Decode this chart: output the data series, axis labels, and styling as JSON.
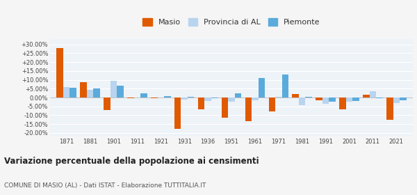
{
  "years": [
    1871,
    1881,
    1901,
    1911,
    1921,
    1931,
    1936,
    1951,
    1961,
    1971,
    1981,
    1991,
    2001,
    2011,
    2021
  ],
  "masio": [
    28.0,
    8.5,
    -7.0,
    -0.5,
    -0.5,
    -17.5,
    -6.5,
    -11.5,
    -13.5,
    -8.0,
    2.0,
    -1.5,
    -6.5,
    1.5,
    -12.5
  ],
  "provincia": [
    6.0,
    4.5,
    9.5,
    0.0,
    0.0,
    -1.0,
    -2.0,
    -2.5,
    -1.5,
    0.5,
    -4.5,
    -3.5,
    -2.5,
    3.5,
    -3.0
  ],
  "piemonte": [
    5.5,
    5.0,
    6.5,
    2.5,
    0.8,
    0.5,
    -0.5,
    2.5,
    11.0,
    13.0,
    0.5,
    -2.5,
    -2.0,
    -0.5,
    -1.5
  ],
  "masio_color": "#e05a00",
  "provincia_color": "#b8d4ee",
  "piemonte_color": "#5aabdb",
  "bg_color": "#eef3f8",
  "grid_color": "#ffffff",
  "title": "Variazione percentuale della popolazione ai censimenti",
  "subtitle": "COMUNE DI MASIO (AL) - Dati ISTAT - Elaborazione TUTTITALIA.IT",
  "ylim": [
    -22,
    33
  ],
  "yticks": [
    -20,
    -15,
    -10,
    -5,
    0,
    5,
    10,
    15,
    20,
    25,
    30
  ],
  "bar_width": 0.28
}
